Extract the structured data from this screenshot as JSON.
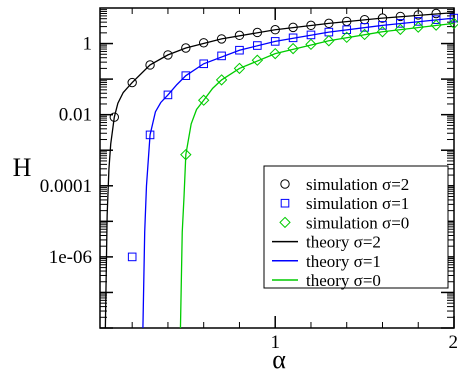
{
  "chart_data": {
    "type": "line",
    "xlabel": "α",
    "ylabel": "H",
    "x_scale": "linear",
    "y_scale": "log",
    "xlim": [
      0.02,
      2.0
    ],
    "ylim": [
      1e-08,
      10
    ],
    "x_ticks": [
      {
        "value": 1,
        "label": "1"
      },
      {
        "value": 2,
        "label": "2"
      }
    ],
    "y_ticks": [
      {
        "value": 1,
        "label": "1"
      },
      {
        "value": 0.01,
        "label": "0.01"
      },
      {
        "value": 0.0001,
        "label": "0.0001"
      },
      {
        "value": 1e-06,
        "label": "1e-06"
      }
    ],
    "grid": false,
    "legend_position": "right",
    "series": [
      {
        "name": "simulation σ=2",
        "kind": "points",
        "marker": "circle",
        "color": "#000000",
        "x": [
          0.1,
          0.2,
          0.3,
          0.4,
          0.5,
          0.6,
          0.7,
          0.8,
          0.9,
          1.0,
          1.1,
          1.2,
          1.3,
          1.4,
          1.5,
          1.6,
          1.7,
          1.8,
          1.9
        ],
        "y": [
          0.0085,
          0.08,
          0.25,
          0.48,
          0.75,
          1.05,
          1.35,
          1.7,
          2.05,
          2.45,
          2.85,
          3.25,
          3.7,
          4.2,
          4.7,
          5.2,
          5.8,
          6.4,
          7.0
        ]
      },
      {
        "name": "simulation σ=1",
        "kind": "points",
        "marker": "square",
        "color": "#0000ff",
        "x": [
          0.2,
          0.3,
          0.4,
          0.5,
          0.6,
          0.7,
          0.8,
          0.9,
          1.0,
          1.1,
          1.2,
          1.3,
          1.4,
          1.5,
          1.6,
          1.7,
          1.8,
          1.9,
          2.0
        ],
        "y": [
          1e-06,
          0.0027,
          0.036,
          0.125,
          0.27,
          0.45,
          0.65,
          0.88,
          1.15,
          1.45,
          1.75,
          2.1,
          2.45,
          2.85,
          3.25,
          3.7,
          4.2,
          4.7,
          5.2
        ]
      },
      {
        "name": "simulation σ=0",
        "kind": "points",
        "marker": "diamond",
        "color": "#00cc00",
        "x": [
          0.5,
          0.6,
          0.7,
          0.8,
          0.9,
          1.0,
          1.1,
          1.2,
          1.3,
          1.4,
          1.5,
          1.6,
          1.7,
          1.8,
          1.9,
          2.0
        ],
        "y": [
          0.00075,
          0.0255,
          0.095,
          0.2,
          0.34,
          0.52,
          0.72,
          0.95,
          1.2,
          1.5,
          1.8,
          2.15,
          2.5,
          2.9,
          3.3,
          3.7
        ]
      },
      {
        "name": "theory σ=2",
        "kind": "line",
        "color": "#000000",
        "x": [
          0.05,
          0.06,
          0.07,
          0.08,
          0.1,
          0.12,
          0.15,
          0.2,
          0.3,
          0.4,
          0.5,
          0.7,
          1.0,
          1.3,
          1.6,
          2.0
        ],
        "y": [
          1e-08,
          1.5e-05,
          0.0003,
          0.0015,
          0.0085,
          0.021,
          0.042,
          0.08,
          0.25,
          0.48,
          0.75,
          1.35,
          2.45,
          3.7,
          5.2,
          7.4
        ]
      },
      {
        "name": "theory σ=1",
        "kind": "line",
        "color": "#0000ff",
        "x": [
          0.26,
          0.27,
          0.28,
          0.3,
          0.33,
          0.36,
          0.4,
          0.45,
          0.5,
          0.6,
          0.8,
          1.0,
          1.3,
          1.6,
          2.0
        ],
        "y": [
          1e-08,
          5e-06,
          0.0001,
          0.0027,
          0.012,
          0.022,
          0.036,
          0.07,
          0.125,
          0.27,
          0.65,
          1.15,
          2.1,
          3.25,
          5.2
        ]
      },
      {
        "name": "theory σ=0",
        "kind": "line",
        "color": "#00cc00",
        "x": [
          0.47,
          0.48,
          0.49,
          0.5,
          0.53,
          0.56,
          0.6,
          0.65,
          0.7,
          0.8,
          1.0,
          1.3,
          1.6,
          2.0
        ],
        "y": [
          1e-08,
          5e-06,
          5e-05,
          0.00075,
          0.0055,
          0.014,
          0.0255,
          0.055,
          0.095,
          0.2,
          0.52,
          1.2,
          2.15,
          3.7
        ]
      }
    ]
  }
}
